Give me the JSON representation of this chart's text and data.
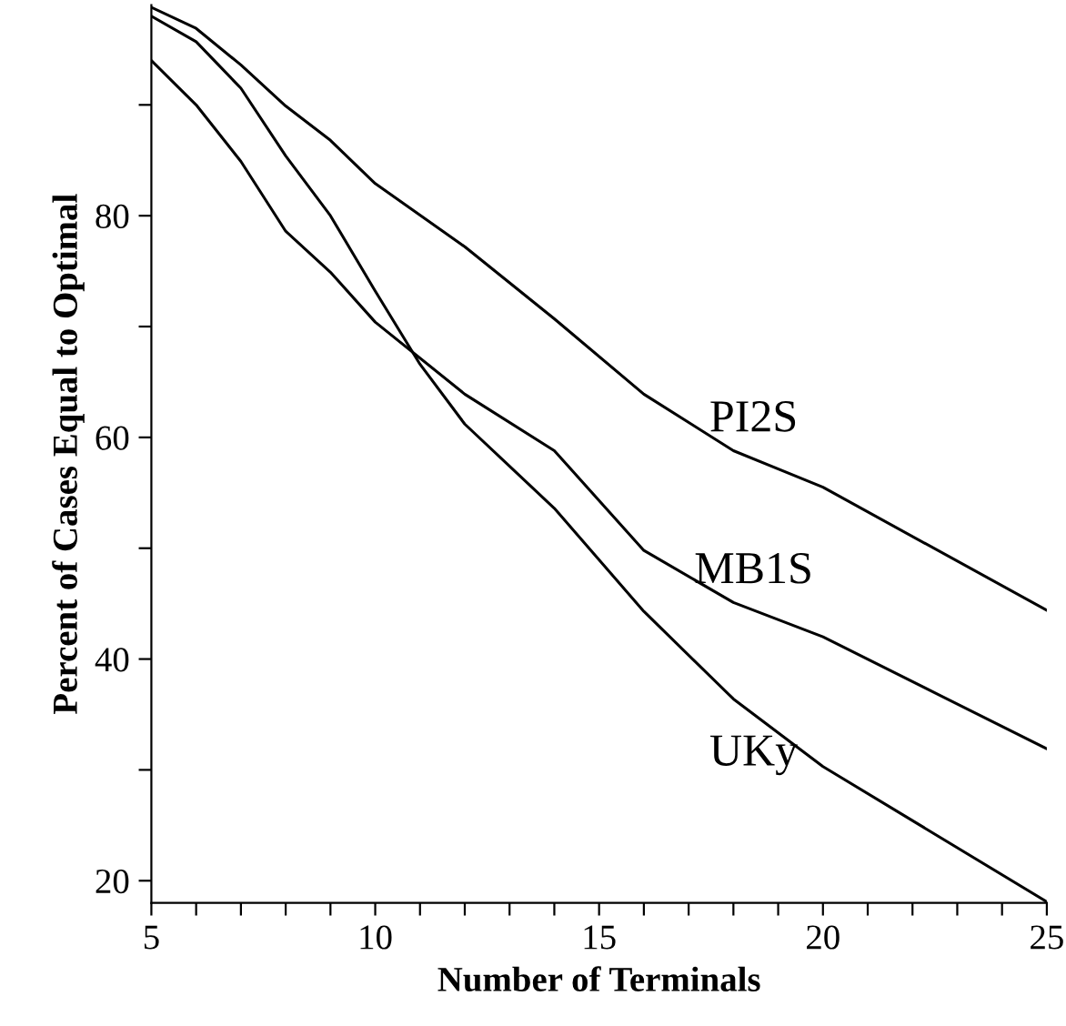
{
  "chart_data": {
    "type": "line",
    "xlabel": "Number of Terminals",
    "ylabel": "Percent of Cases Equal to Optimal",
    "xlim": [
      5,
      25
    ],
    "ylim": [
      18,
      99
    ],
    "xticks": [
      5,
      {
        "value": 6,
        "label": null
      },
      {
        "value": 7,
        "label": null
      },
      {
        "value": 8,
        "label": null
      },
      {
        "value": 9,
        "label": null
      },
      10,
      {
        "value": 11,
        "label": null
      },
      {
        "value": 12,
        "label": null
      },
      {
        "value": 13,
        "label": null
      },
      {
        "value": 14,
        "label": null
      },
      15,
      {
        "value": 16,
        "label": null
      },
      {
        "value": 17,
        "label": null
      },
      {
        "value": 18,
        "label": null
      },
      {
        "value": 19,
        "label": null
      },
      20,
      {
        "value": 21,
        "label": null
      },
      {
        "value": 22,
        "label": null
      },
      {
        "value": 23,
        "label": null
      },
      {
        "value": 24,
        "label": null
      },
      25
    ],
    "yticks": [
      20,
      {
        "value": 30,
        "label": null
      },
      40,
      {
        "value": 50,
        "label": null
      },
      60,
      {
        "value": 70,
        "label": null
      },
      80,
      {
        "value": 90,
        "label": null
      }
    ],
    "grid": false,
    "legend": false,
    "marker": "none",
    "line_style": "solid",
    "series": [
      {
        "name": "PI2S",
        "color": "#000000",
        "x": [
          5,
          6,
          7,
          8,
          9,
          10,
          12,
          14,
          16,
          18,
          20,
          25
        ],
        "values": [
          98.8,
          96.9,
          93.6,
          89.9,
          86.8,
          82.9,
          77.2,
          70.7,
          63.9,
          58.8,
          55.5,
          44.4
        ]
      },
      {
        "name": "MB1S",
        "color": "#000000",
        "x": [
          5,
          6,
          7,
          8,
          9,
          10,
          12,
          14,
          16,
          18,
          20,
          25
        ],
        "values": [
          94,
          90,
          84.9,
          78.6,
          74.9,
          70.4,
          63.9,
          58.8,
          49.8,
          45.1,
          42,
          31.9
        ]
      },
      {
        "name": "UKy",
        "color": "#000000",
        "x": [
          5,
          6,
          7,
          8,
          9,
          10,
          11,
          12,
          14,
          16,
          18,
          20,
          25
        ],
        "values": [
          98,
          95.7,
          91.5,
          85.4,
          80,
          73.2,
          66.6,
          61.2,
          53.6,
          44.3,
          36.4,
          30.3,
          18.1
        ]
      }
    ]
  }
}
